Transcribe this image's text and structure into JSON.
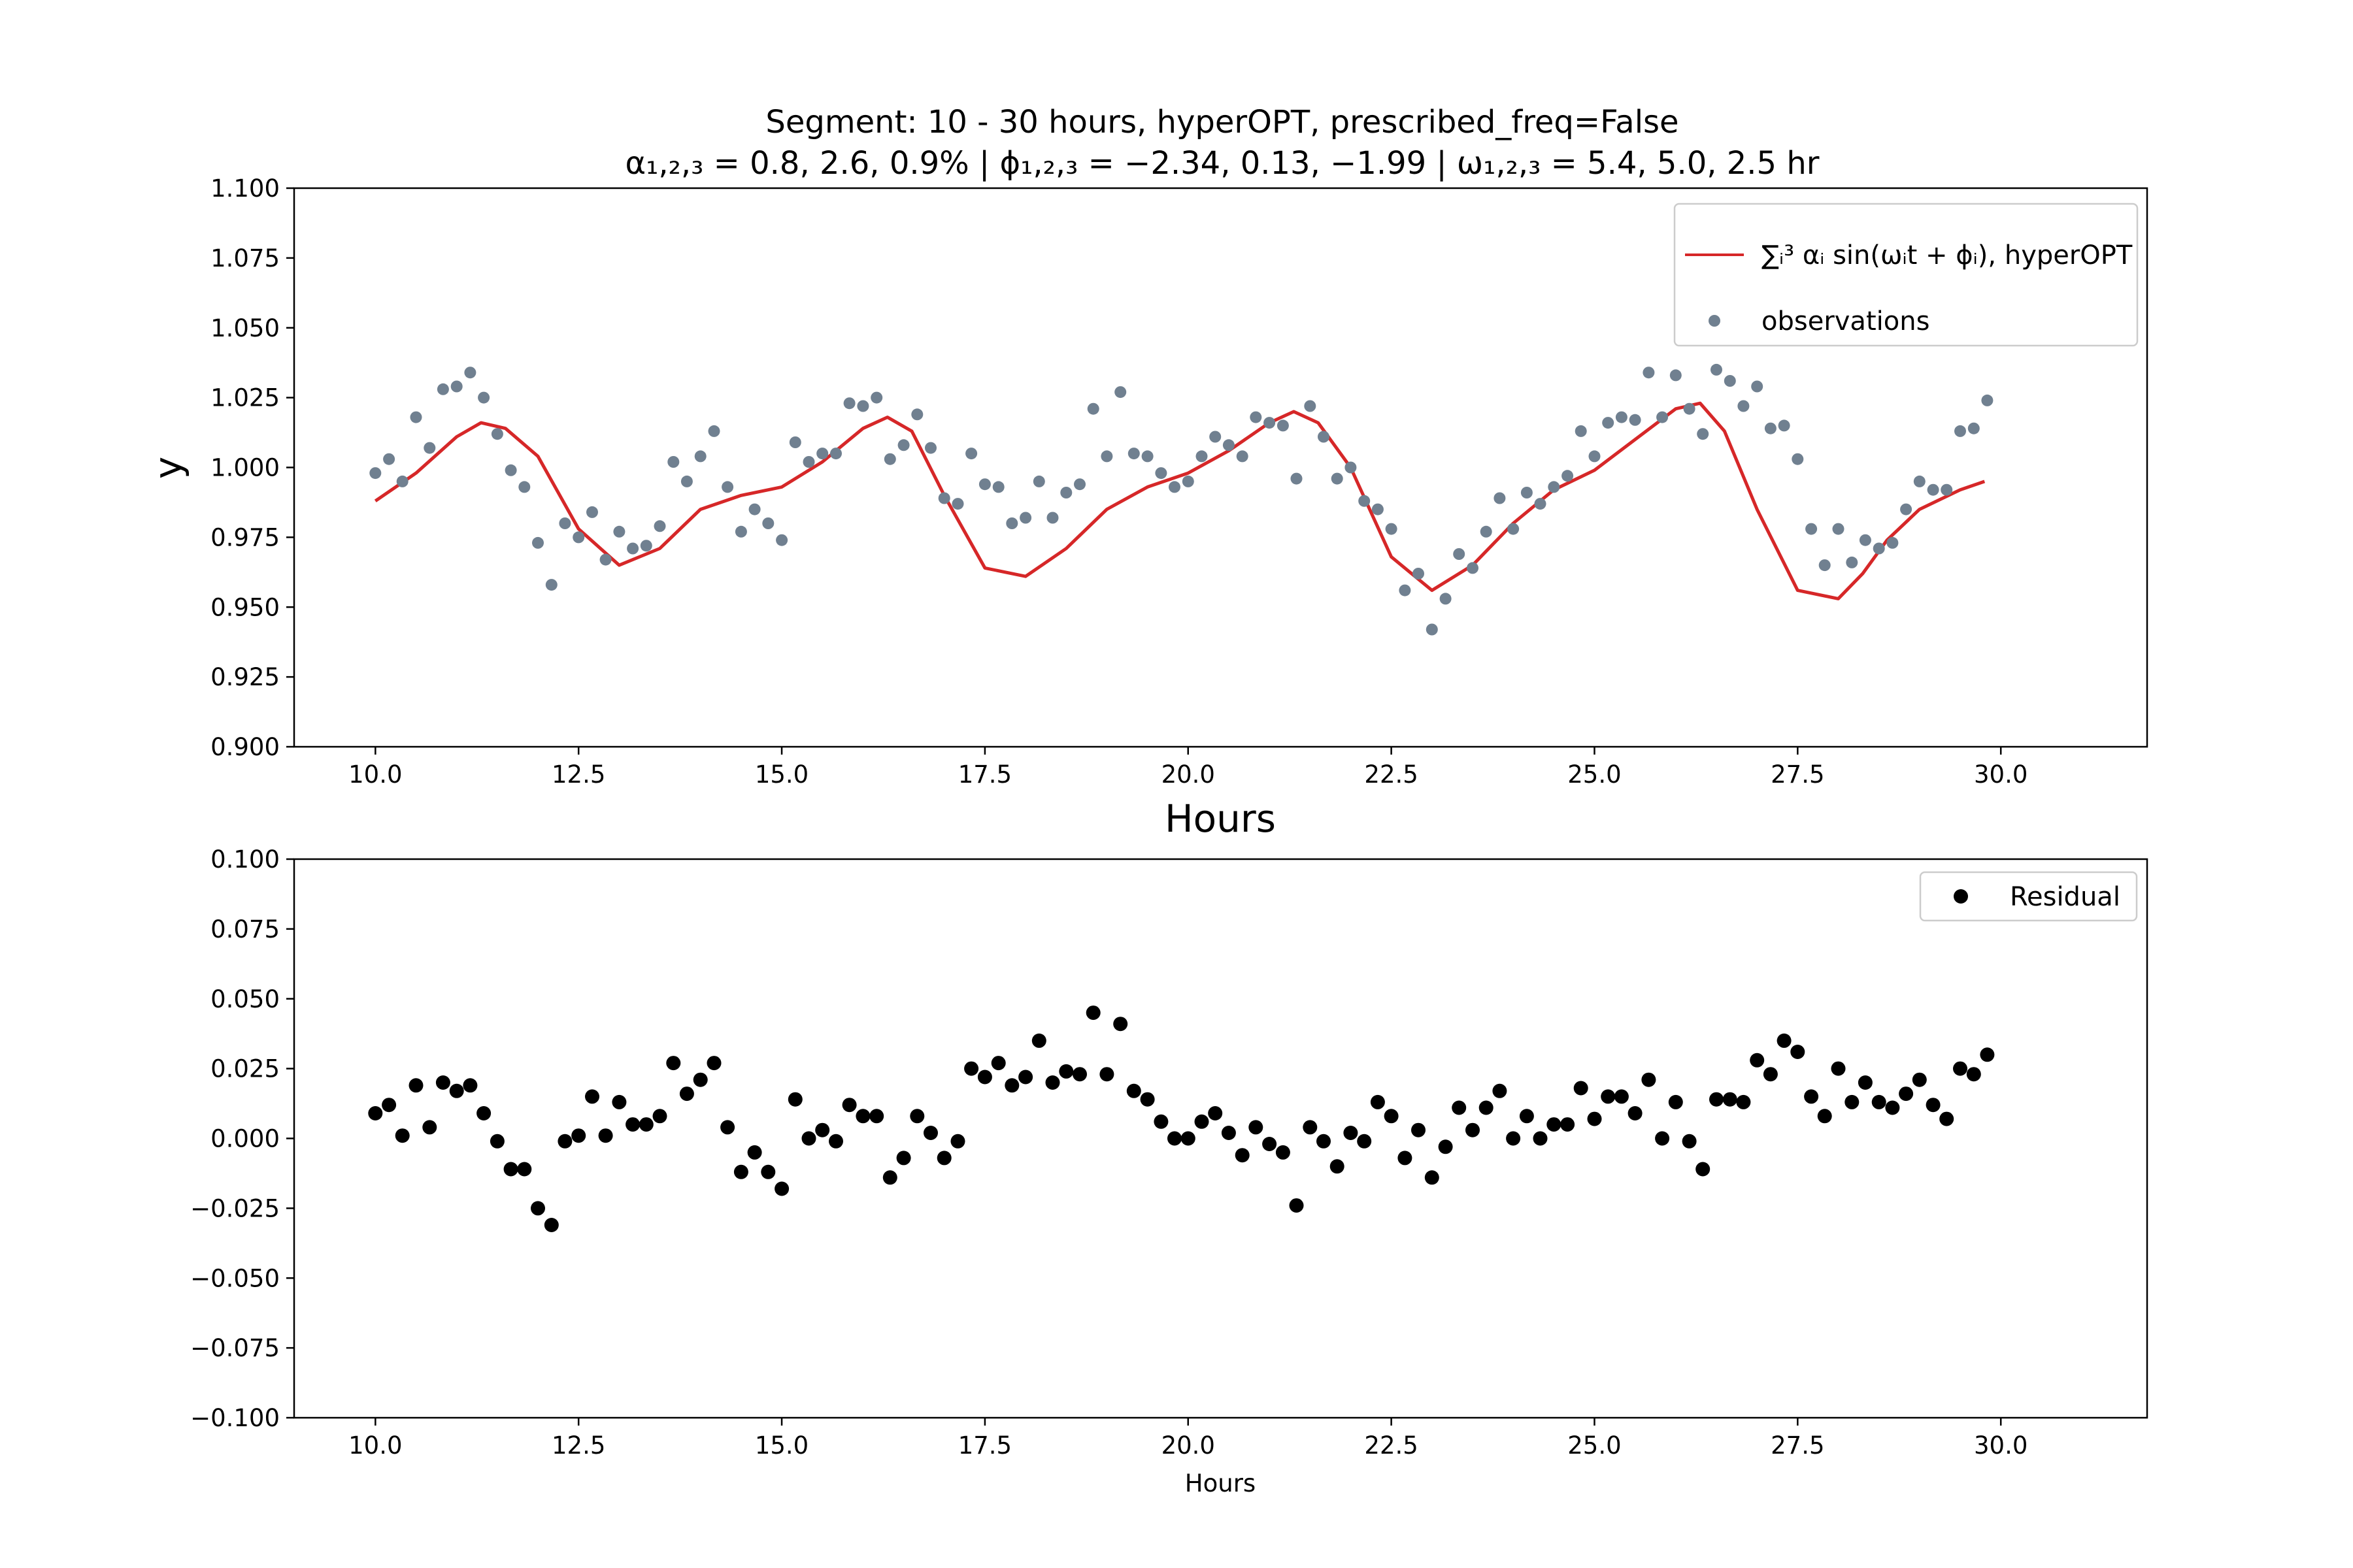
{
  "figure": {
    "title_line1": "Segment: 10 - 30 hours, hyperOPT, prescribed_freq=False",
    "title_line2": "α₁,₂,₃ = 0.8, 2.6, 0.9%  |  ϕ₁,₂,₃ = −2.34, 0.13, −1.99  |  ω₁,₂,₃ = 5.4, 5.0, 2.5 hr"
  },
  "colors": {
    "model_line": "#d62728",
    "observations": "#708090",
    "residual": "#000000"
  },
  "chart_data": [
    {
      "type": "line",
      "xlabel": "Hours",
      "ylabel": "y",
      "xlim": [
        9.0,
        31.8
      ],
      "ylim": [
        0.9,
        1.1
      ],
      "xticks": [
        10.0,
        12.5,
        15.0,
        17.5,
        20.0,
        22.5,
        25.0,
        27.5,
        30.0
      ],
      "xtick_labels": [
        "10.0",
        "12.5",
        "15.0",
        "17.5",
        "20.0",
        "22.5",
        "25.0",
        "27.5",
        "30.0"
      ],
      "yticks": [
        0.9,
        0.925,
        0.95,
        0.975,
        1.0,
        1.025,
        1.05,
        1.075,
        1.1
      ],
      "ytick_labels": [
        "0.900",
        "0.925",
        "0.950",
        "0.975",
        "1.000",
        "1.025",
        "1.050",
        "1.075",
        "1.100"
      ],
      "legend_position": "upper right",
      "legend": [
        {
          "label": "∑ᵢ³ αᵢ sin(ωᵢt + ϕᵢ), hyperOPT",
          "marker": "line"
        },
        {
          "label": "observations",
          "marker": "point"
        }
      ],
      "series": [
        {
          "name": "∑ᵢ³ αᵢ sin(ωᵢt + ϕᵢ), hyperOPT",
          "kind": "line",
          "x": [
            10.0,
            10.5,
            11.0,
            11.3,
            11.6,
            12.0,
            12.5,
            13.0,
            13.5,
            14.0,
            14.5,
            15.0,
            15.5,
            16.0,
            16.3,
            16.6,
            17.0,
            17.5,
            18.0,
            18.5,
            19.0,
            19.5,
            20.0,
            20.5,
            21.0,
            21.3,
            21.6,
            22.0,
            22.5,
            23.0,
            23.5,
            24.0,
            24.5,
            25.0,
            25.5,
            26.0,
            26.3,
            26.6,
            27.0,
            27.5,
            28.0,
            28.3,
            28.6,
            29.0,
            29.5,
            29.8
          ],
          "y": [
            0.988,
            0.998,
            1.011,
            1.016,
            1.014,
            1.004,
            0.978,
            0.965,
            0.971,
            0.985,
            0.99,
            0.993,
            1.002,
            1.014,
            1.018,
            1.013,
            0.99,
            0.964,
            0.961,
            0.971,
            0.985,
            0.993,
            0.998,
            1.006,
            1.016,
            1.02,
            1.016,
            1.0,
            0.968,
            0.956,
            0.965,
            0.98,
            0.992,
            0.999,
            1.01,
            1.021,
            1.023,
            1.013,
            0.985,
            0.956,
            0.953,
            0.962,
            0.974,
            0.985,
            0.992,
            0.995
          ]
        },
        {
          "name": "observations",
          "kind": "scatter",
          "x": [
            10.0,
            10.167,
            10.333,
            10.5,
            10.667,
            10.833,
            11.0,
            11.167,
            11.333,
            11.5,
            11.667,
            11.833,
            12.0,
            12.167,
            12.333,
            12.5,
            12.667,
            12.833,
            13.0,
            13.167,
            13.333,
            13.5,
            13.667,
            13.833,
            14.0,
            14.167,
            14.333,
            14.5,
            14.667,
            14.833,
            15.0,
            15.167,
            15.333,
            15.5,
            15.667,
            15.833,
            16.0,
            16.167,
            16.333,
            16.5,
            16.667,
            16.833,
            17.0,
            17.167,
            17.333,
            17.5,
            17.667,
            17.833,
            18.0,
            18.167,
            18.333,
            18.5,
            18.667,
            18.833,
            19.0,
            19.167,
            19.333,
            19.5,
            19.667,
            19.833,
            20.0,
            20.167,
            20.333,
            20.5,
            20.667,
            20.833,
            21.0,
            21.167,
            21.333,
            21.5,
            21.667,
            21.833,
            22.0,
            22.167,
            22.333,
            22.5,
            22.667,
            22.833,
            23.0,
            23.167,
            23.333,
            23.5,
            23.667,
            23.833,
            24.0,
            24.167,
            24.333,
            24.5,
            24.667,
            24.833,
            25.0,
            25.167,
            25.333,
            25.5,
            25.667,
            25.833,
            26.0,
            26.167,
            26.333,
            26.5,
            26.667,
            26.833,
            27.0,
            27.167,
            27.333,
            27.5,
            27.667,
            27.833,
            28.0,
            28.167,
            28.333,
            28.5,
            28.667,
            28.833,
            29.0,
            29.167,
            29.333,
            29.5,
            29.667,
            29.833
          ],
          "y": [
            0.998,
            1.003,
            0.995,
            1.018,
            1.007,
            1.028,
            1.029,
            1.034,
            1.025,
            1.012,
            0.999,
            0.993,
            0.973,
            0.958,
            0.98,
            0.975,
            0.984,
            0.967,
            0.977,
            0.971,
            0.972,
            0.979,
            1.002,
            0.995,
            1.004,
            1.013,
            0.993,
            0.977,
            0.985,
            0.98,
            0.974,
            1.009,
            1.002,
            1.005,
            1.005,
            1.023,
            1.022,
            1.025,
            1.003,
            1.008,
            1.019,
            1.007,
            0.989,
            0.987,
            1.005,
            0.994,
            0.993,
            0.98,
            0.982,
            0.995,
            0.982,
            0.991,
            0.994,
            1.021,
            1.004,
            1.027,
            1.005,
            1.004,
            0.998,
            0.993,
            0.995,
            1.004,
            1.011,
            1.008,
            1.004,
            1.018,
            1.016,
            1.015,
            0.996,
            1.022,
            1.011,
            0.996,
            1.0,
            0.988,
            0.985,
            0.978,
            0.956,
            0.962,
            0.942,
            0.953,
            0.969,
            0.964,
            0.977,
            0.989,
            0.978,
            0.991,
            0.987,
            0.993,
            0.997,
            1.013,
            1.004,
            1.016,
            1.018,
            1.017,
            1.034,
            1.018,
            1.033,
            1.021,
            1.012,
            1.035,
            1.031,
            1.022,
            1.029,
            1.014,
            1.015,
            1.003,
            0.978,
            0.965,
            0.978,
            0.966,
            0.974,
            0.971,
            0.973,
            0.985,
            0.995,
            0.992,
            0.992,
            1.013,
            1.014,
            1.024
          ]
        }
      ]
    },
    {
      "type": "scatter",
      "xlabel": "Hours",
      "ylabel": "",
      "xlim": [
        9.0,
        31.8
      ],
      "ylim": [
        -0.1,
        0.1
      ],
      "xticks": [
        10.0,
        12.5,
        15.0,
        17.5,
        20.0,
        22.5,
        25.0,
        27.5,
        30.0
      ],
      "xtick_labels": [
        "10.0",
        "12.5",
        "15.0",
        "17.5",
        "20.0",
        "22.5",
        "25.0",
        "27.5",
        "30.0"
      ],
      "yticks": [
        -0.1,
        -0.075,
        -0.05,
        -0.025,
        0.0,
        0.025,
        0.05,
        0.075,
        0.1
      ],
      "ytick_labels": [
        "−0.100",
        "−0.075",
        "−0.050",
        "−0.025",
        "0.000",
        "0.025",
        "0.050",
        "0.075",
        "0.100"
      ],
      "legend_position": "upper right",
      "legend": [
        {
          "label": "Residual",
          "marker": "point"
        }
      ],
      "series": [
        {
          "name": "Residual",
          "kind": "scatter",
          "x": [
            10.0,
            10.167,
            10.333,
            10.5,
            10.667,
            10.833,
            11.0,
            11.167,
            11.333,
            11.5,
            11.667,
            11.833,
            12.0,
            12.167,
            12.333,
            12.5,
            12.667,
            12.833,
            13.0,
            13.167,
            13.333,
            13.5,
            13.667,
            13.833,
            14.0,
            14.167,
            14.333,
            14.5,
            14.667,
            14.833,
            15.0,
            15.167,
            15.333,
            15.5,
            15.667,
            15.833,
            16.0,
            16.167,
            16.333,
            16.5,
            16.667,
            16.833,
            17.0,
            17.167,
            17.333,
            17.5,
            17.667,
            17.833,
            18.0,
            18.167,
            18.333,
            18.5,
            18.667,
            18.833,
            19.0,
            19.167,
            19.333,
            19.5,
            19.667,
            19.833,
            20.0,
            20.167,
            20.333,
            20.5,
            20.667,
            20.833,
            21.0,
            21.167,
            21.333,
            21.5,
            21.667,
            21.833,
            22.0,
            22.167,
            22.333,
            22.5,
            22.667,
            22.833,
            23.0,
            23.167,
            23.333,
            23.5,
            23.667,
            23.833,
            24.0,
            24.167,
            24.333,
            24.5,
            24.667,
            24.833,
            25.0,
            25.167,
            25.333,
            25.5,
            25.667,
            25.833,
            26.0,
            26.167,
            26.333,
            26.5,
            26.667,
            26.833,
            27.0,
            27.167,
            27.333,
            27.5,
            27.667,
            27.833,
            28.0,
            28.167,
            28.333,
            28.5,
            28.667,
            28.833,
            29.0,
            29.167,
            29.333,
            29.5,
            29.667,
            29.833
          ],
          "y": [
            0.009,
            0.012,
            0.001,
            0.019,
            0.004,
            0.02,
            0.017,
            0.019,
            0.009,
            -0.001,
            -0.011,
            -0.011,
            -0.025,
            -0.031,
            -0.001,
            0.001,
            0.015,
            0.001,
            0.013,
            0.005,
            0.005,
            0.008,
            0.027,
            0.016,
            0.021,
            0.027,
            0.004,
            -0.012,
            -0.005,
            -0.012,
            -0.018,
            0.014,
            0.0,
            0.003,
            -0.001,
            0.012,
            0.008,
            0.008,
            -0.014,
            -0.007,
            0.008,
            0.002,
            -0.007,
            -0.001,
            0.025,
            0.022,
            0.027,
            0.019,
            0.022,
            0.035,
            0.02,
            0.024,
            0.023,
            0.045,
            0.023,
            0.041,
            0.017,
            0.014,
            0.006,
            0.0,
            0.0,
            0.006,
            0.009,
            0.002,
            -0.006,
            0.004,
            -0.002,
            -0.005,
            -0.024,
            0.004,
            -0.001,
            -0.01,
            0.002,
            -0.001,
            0.013,
            0.008,
            -0.007,
            0.003,
            -0.014,
            -0.003,
            0.011,
            0.003,
            0.011,
            0.017,
            0.0,
            0.008,
            0.0,
            0.005,
            0.005,
            0.018,
            0.007,
            0.015,
            0.015,
            0.009,
            0.021,
            0.0,
            0.013,
            -0.001,
            -0.011,
            0.014,
            0.014,
            0.013,
            0.028,
            0.023,
            0.035,
            0.031,
            0.015,
            0.008,
            0.025,
            0.013,
            0.02,
            0.013,
            0.011,
            0.016,
            0.021,
            0.012,
            0.007,
            0.025,
            0.023,
            0.03
          ]
        }
      ]
    }
  ]
}
